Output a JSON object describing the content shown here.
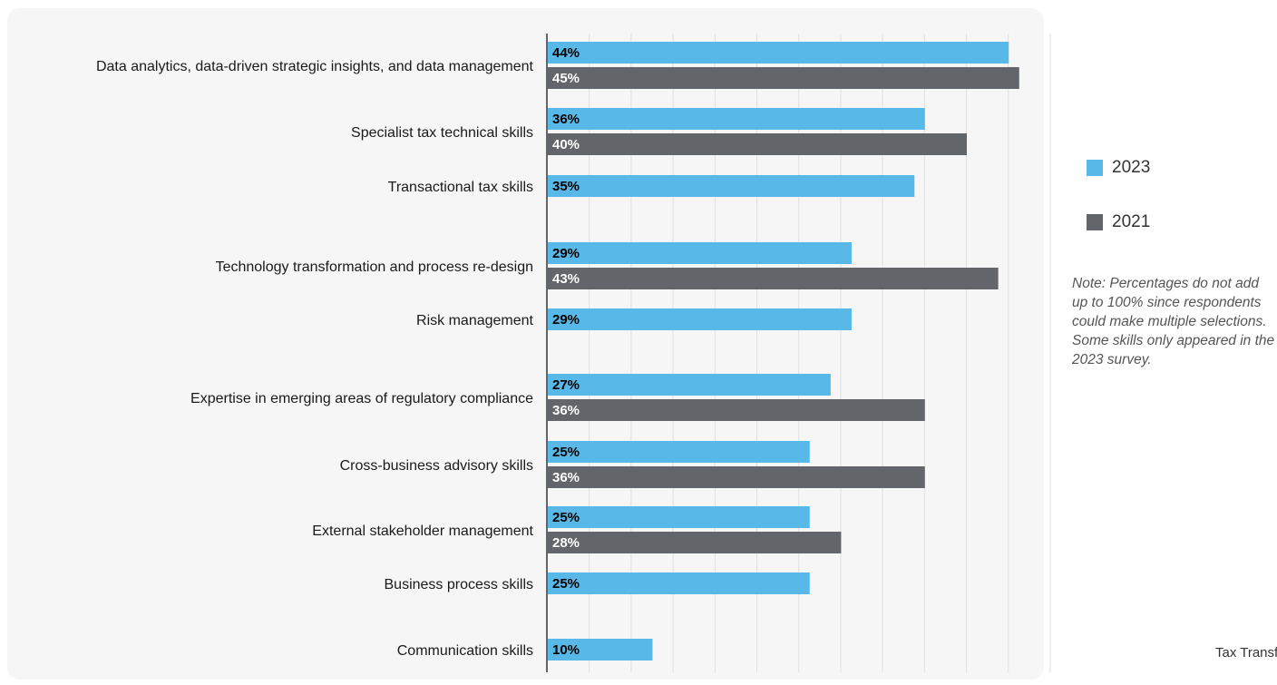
{
  "chart_data": {
    "type": "bar",
    "orientation": "horizontal",
    "categories": [
      "Data analytics, data-driven strategic insights, and data management",
      "Specialist tax technical skills",
      "Transactional tax skills",
      "Technology transformation and process re-design",
      "Risk management",
      "Expertise in emerging areas of regulatory compliance",
      "Cross-business advisory skills",
      "External stakeholder management",
      "Business process skills",
      "Communication skills"
    ],
    "series": [
      {
        "name": "2023",
        "color": "#58b9e9",
        "label_color": "#000000",
        "values": [
          44,
          36,
          35,
          29,
          29,
          27,
          25,
          25,
          25,
          10
        ],
        "labels": [
          "44%",
          "36%",
          "35%",
          "29%",
          "29%",
          "27%",
          "25%",
          "25%",
          "25%",
          "10%"
        ]
      },
      {
        "name": "2021",
        "color": "#62666b",
        "label_color": "#ffffff",
        "values": [
          45,
          40,
          null,
          43,
          null,
          36,
          36,
          28,
          null,
          null
        ],
        "labels": [
          "45%",
          "40%",
          "",
          "43%",
          "",
          "36%",
          "36%",
          "28%",
          "",
          ""
        ]
      }
    ],
    "xlim": [
      0,
      50
    ],
    "grid": true,
    "legend_position": "right"
  },
  "note": "Note: Percentages do not add up to 100% since respondents could make multiple selections. Some skills only appeared in the 2023 survey.",
  "footer": "Tax Transf"
}
